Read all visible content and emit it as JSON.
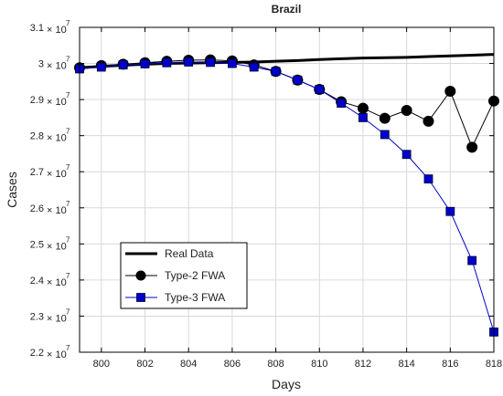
{
  "chart_data": {
    "type": "line",
    "title": "Brazil",
    "xlabel": "Days",
    "ylabel": "Cases",
    "xlim": [
      799,
      818
    ],
    "ylim": [
      22000000,
      31000000
    ],
    "xticks": [
      800,
      802,
      804,
      806,
      808,
      810,
      812,
      814,
      816,
      818
    ],
    "xtick_labels": [
      "800",
      "802",
      "804",
      "806",
      "808",
      "810",
      "812",
      "814",
      "816",
      "818"
    ],
    "yticks": [
      22000000,
      23000000,
      24000000,
      25000000,
      26000000,
      27000000,
      28000000,
      29000000,
      30000000,
      31000000
    ],
    "ytick_mantissas": [
      "2.2",
      "2.3",
      "2.4",
      "2.5",
      "2.6",
      "2.7",
      "2.8",
      "2.9",
      "3",
      "3.1"
    ],
    "ytick_multiplier": "× 10",
    "ytick_exponent": "7",
    "grid": true,
    "legend_position": "lower-left",
    "x": [
      799,
      800,
      801,
      802,
      803,
      804,
      805,
      806,
      807,
      808,
      809,
      810,
      811,
      812,
      813,
      814,
      815,
      816,
      817,
      818
    ],
    "series": [
      {
        "name": "Real Data",
        "color": "#000000",
        "marker": "none",
        "values": [
          29880000,
          29920000,
          29950000,
          29980000,
          30000000,
          30010000,
          30020000,
          30030000,
          30040000,
          30060000,
          30080000,
          30110000,
          30130000,
          30150000,
          30160000,
          30170000,
          30190000,
          30210000,
          30230000,
          30250000
        ]
      },
      {
        "name": "Type-2 FWA",
        "color": "#000000",
        "marker": "circle",
        "values": [
          29880000,
          29940000,
          29980000,
          30020000,
          30060000,
          30090000,
          30100000,
          30070000,
          29960000,
          29780000,
          29540000,
          29280000,
          28940000,
          28760000,
          28480000,
          28700000,
          28400000,
          29230000,
          27680000,
          28960000
        ]
      },
      {
        "name": "Type-3 FWA",
        "color": "#0000cc",
        "marker": "square",
        "values": [
          29850000,
          29900000,
          29960000,
          29990000,
          30020000,
          30040000,
          30030000,
          30000000,
          29900000,
          29780000,
          29540000,
          29280000,
          28900000,
          28500000,
          28030000,
          27480000,
          26800000,
          25900000,
          24540000,
          22560000
        ]
      }
    ]
  }
}
